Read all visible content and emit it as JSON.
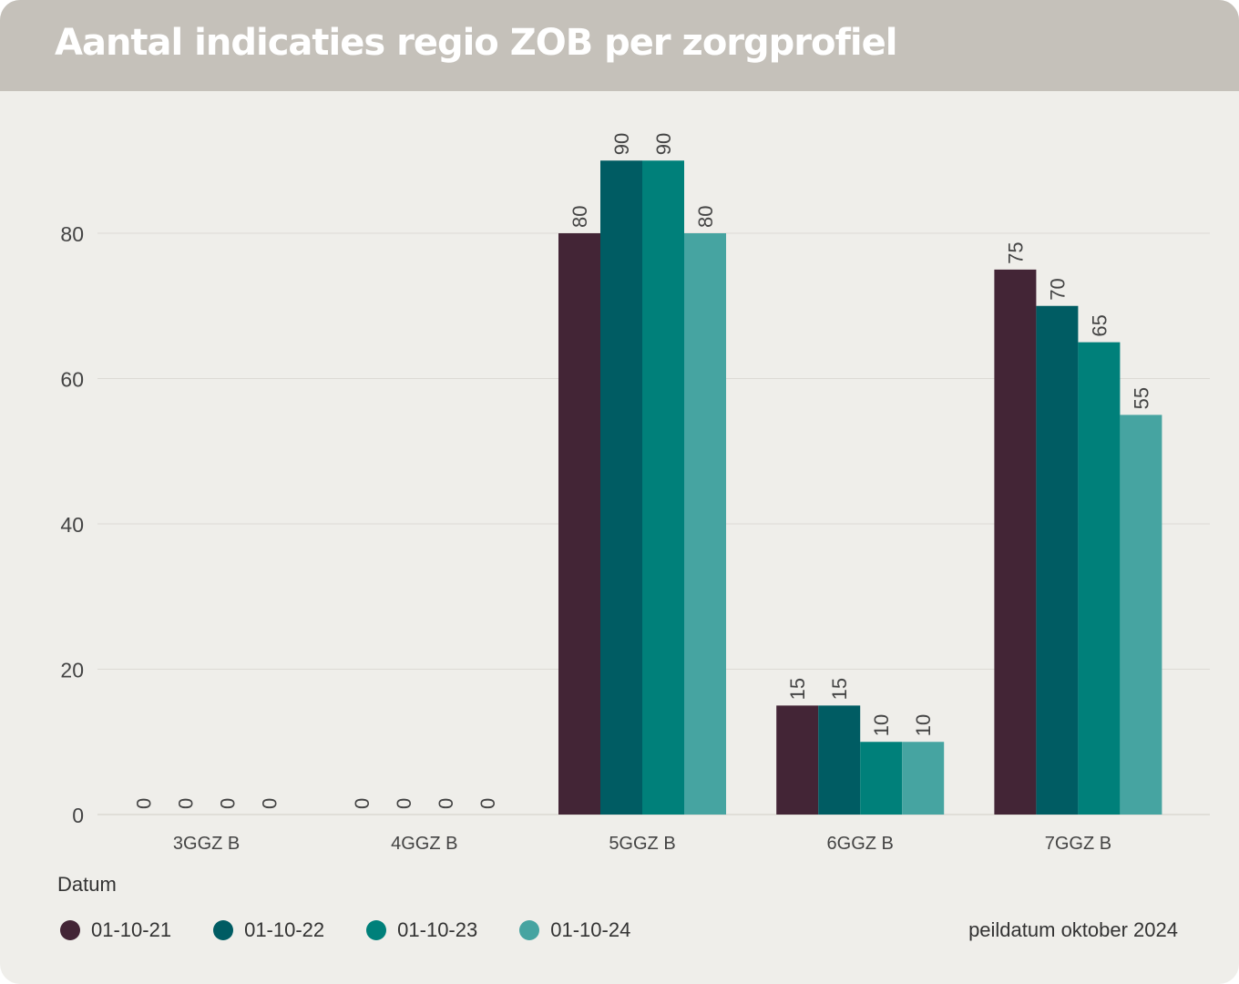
{
  "title": "Aantal indicaties regio ZOB per zorgprofiel",
  "legend_title": "Datum",
  "footnote": "peildatum oktober 2024",
  "colors": {
    "header_bg": "#c5c1ba",
    "panel_bg": "#efeeea",
    "series": [
      "#432536",
      "#005c63",
      "#00807a",
      "#46a4a1"
    ]
  },
  "chart_data": {
    "type": "bar",
    "title": "Aantal indicaties regio ZOB per zorgprofiel",
    "categories": [
      "3GGZ B",
      "4GGZ B",
      "5GGZ B",
      "6GGZ B",
      "7GGZ B"
    ],
    "series": [
      {
        "name": "01-10-21",
        "values": [
          0,
          0,
          80,
          15,
          75
        ]
      },
      {
        "name": "01-10-22",
        "values": [
          0,
          0,
          90,
          15,
          70
        ]
      },
      {
        "name": "01-10-23",
        "values": [
          0,
          0,
          90,
          10,
          65
        ]
      },
      {
        "name": "01-10-24",
        "values": [
          0,
          0,
          80,
          10,
          55
        ]
      }
    ],
    "y_ticks": [
      "0",
      "20",
      "40",
      "60",
      "80"
    ],
    "ylim": [
      0,
      100
    ],
    "grid": true,
    "data_labels": "vertical",
    "legend_placement": "bottom-left",
    "xlabel": "",
    "ylabel": ""
  }
}
